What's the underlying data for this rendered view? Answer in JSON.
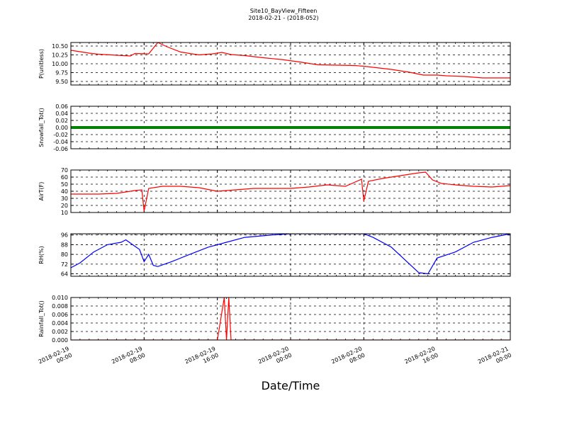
{
  "title": "Site10_BayView_Fifteen",
  "subtitle": "2018-02-21 - (2018-052)",
  "xlabel": "Date/Time",
  "x_ticks": [
    {
      "d": "2018-02-19",
      "t": "00:00"
    },
    {
      "d": "2018-02-19",
      "t": "08:00"
    },
    {
      "d": "2018-02-19",
      "t": "16:00"
    },
    {
      "d": "2018-02-20",
      "t": "00:00"
    },
    {
      "d": "2018-02-20",
      "t": "08:00"
    },
    {
      "d": "2018-02-20",
      "t": "16:00"
    },
    {
      "d": "2018-02-21",
      "t": "00:00"
    }
  ],
  "chart_data": [
    {
      "type": "line",
      "ylabel": "P(unitless)",
      "color": "#ff0000",
      "ylim": [
        9.4,
        10.6
      ],
      "yticks": [
        "9.50",
        "9.75",
        "10.00",
        "10.25",
        "10.50"
      ],
      "x": [
        "2018-02-19 00:00",
        "2018-02-19 02:00",
        "2018-02-19 03:00",
        "2018-02-19 05:00",
        "2018-02-19 06:30",
        "2018-02-19 07:00",
        "2018-02-19 08:30",
        "2018-02-19 09:30",
        "2018-02-19 10:30",
        "2018-02-19 12:00",
        "2018-02-19 14:00",
        "2018-02-19 15:30",
        "2018-02-19 16:30",
        "2018-02-19 17:30",
        "2018-02-19 19:00",
        "2018-02-19 21:00",
        "2018-02-19 23:00",
        "2018-02-20 01:00",
        "2018-02-20 03:00",
        "2018-02-20 05:00",
        "2018-02-20 07:00",
        "2018-02-20 08:00",
        "2018-02-20 10:00",
        "2018-02-20 11:00",
        "2018-02-20 13:00",
        "2018-02-20 14:30",
        "2018-02-20 16:00",
        "2018-02-20 17:00",
        "2018-02-20 19:00",
        "2018-02-20 20:00",
        "2018-02-20 21:00",
        "2018-02-21 00:00"
      ],
      "y": [
        10.38,
        10.3,
        10.27,
        10.24,
        10.22,
        10.29,
        10.28,
        10.6,
        10.48,
        10.33,
        10.25,
        10.28,
        10.32,
        10.26,
        10.23,
        10.17,
        10.12,
        10.05,
        9.97,
        9.96,
        9.95,
        9.93,
        9.87,
        9.84,
        9.76,
        9.68,
        9.68,
        9.66,
        9.64,
        9.62,
        9.6,
        9.6
      ]
    },
    {
      "type": "line",
      "ylabel": "Snowfall_Tot()",
      "color": "#008000",
      "ylim": [
        -0.06,
        0.06
      ],
      "yticks": [
        "-0.06",
        "-0.04",
        "-0.02",
        "0.00",
        "0.02",
        "0.04",
        "0.06"
      ],
      "x": [
        "2018-02-19 00:00",
        "2018-02-21 00:00"
      ],
      "y": [
        0,
        0
      ]
    },
    {
      "type": "line",
      "ylabel": "AirT(F)",
      "color": "#ff0000",
      "ylim": [
        10,
        70
      ],
      "yticks": [
        "10",
        "20",
        "30",
        "40",
        "50",
        "60",
        "70"
      ],
      "x": [
        "2018-02-19 00:00",
        "2018-02-19 03:00",
        "2018-02-19 05:00",
        "2018-02-19 07:00",
        "2018-02-19 07:45",
        "2018-02-19 08:00",
        "2018-02-19 08:30",
        "2018-02-19 10:00",
        "2018-02-19 12:00",
        "2018-02-19 14:00",
        "2018-02-19 16:00",
        "2018-02-19 18:00",
        "2018-02-19 20:00",
        "2018-02-20 00:00",
        "2018-02-20 02:00",
        "2018-02-20 04:00",
        "2018-02-20 06:00",
        "2018-02-20 07:45",
        "2018-02-20 08:00",
        "2018-02-20 08:30",
        "2018-02-20 10:00",
        "2018-02-20 12:00",
        "2018-02-20 14:00",
        "2018-02-20 14:45",
        "2018-02-20 15:30",
        "2018-02-20 16:30",
        "2018-02-20 18:00",
        "2018-02-20 20:00",
        "2018-02-20 22:00",
        "2018-02-21 00:00"
      ],
      "y": [
        36,
        36,
        37,
        41,
        42,
        12,
        44,
        47,
        47,
        45,
        40,
        42,
        44,
        44,
        46,
        49,
        47,
        57,
        26,
        54,
        58,
        62,
        66,
        67,
        56,
        51,
        49,
        47,
        46,
        48
      ]
    },
    {
      "type": "line",
      "ylabel": "RH(%)",
      "color": "#0000ff",
      "ylim": [
        62,
        97
      ],
      "yticks": [
        "64",
        "72",
        "80",
        "88",
        "96"
      ],
      "x": [
        "2018-02-19 00:00",
        "2018-02-19 01:00",
        "2018-02-19 02:30",
        "2018-02-19 04:00",
        "2018-02-19 05:30",
        "2018-02-19 06:00",
        "2018-02-19 07:30",
        "2018-02-19 08:00",
        "2018-02-19 08:30",
        "2018-02-19 09:00",
        "2018-02-19 09:30",
        "2018-02-19 11:00",
        "2018-02-19 13:00",
        "2018-02-19 15:00",
        "2018-02-19 17:00",
        "2018-02-19 19:00",
        "2018-02-19 22:00",
        "2018-02-20 00:00",
        "2018-02-20 08:00",
        "2018-02-20 09:00",
        "2018-02-20 11:00",
        "2018-02-20 13:00",
        "2018-02-20 14:00",
        "2018-02-20 15:00",
        "2018-02-20 16:00",
        "2018-02-20 18:00",
        "2018-02-20 20:00",
        "2018-02-20 22:00",
        "2018-02-21 00:00"
      ],
      "y": [
        69,
        73,
        82,
        88,
        90,
        92,
        84,
        74,
        80,
        71,
        70,
        74,
        80,
        86,
        90,
        94,
        96,
        97,
        97,
        94,
        86,
        72,
        65,
        64,
        77,
        82,
        90,
        94,
        97
      ]
    },
    {
      "type": "line",
      "ylabel": "Rainfall_Tot()",
      "color": "#ff0000",
      "ylim": [
        0.0,
        0.01
      ],
      "yticks": [
        "0.000",
        "0.002",
        "0.004",
        "0.006",
        "0.008",
        "0.010"
      ],
      "x": [
        "2018-02-19 00:00",
        "2018-02-19 16:00",
        "2018-02-19 16:45",
        "2018-02-19 17:00",
        "2018-02-19 17:15",
        "2018-02-19 17:30",
        "2018-02-19 18:00",
        "2018-02-21 00:00"
      ],
      "y": [
        0,
        0,
        0.01,
        0,
        0.01,
        0,
        0,
        0
      ]
    }
  ]
}
